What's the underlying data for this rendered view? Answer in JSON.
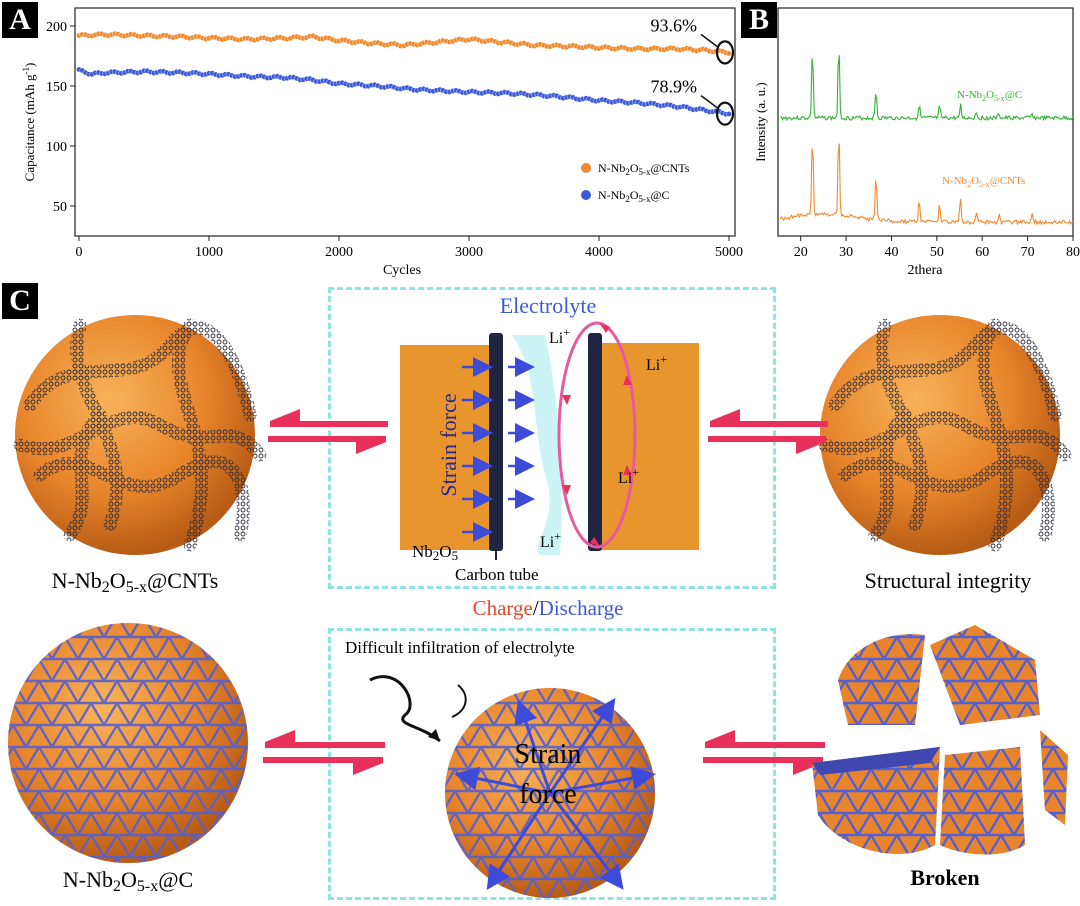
{
  "panels": {
    "a": "A",
    "b": "B",
    "c": "C"
  },
  "chart_data": [
    {
      "type": "scatter",
      "xlabel": "Cycles",
      "ylabel": "Capacitance (mAh g",
      "ylabel_sup": "-1",
      "ylabel_close": ")",
      "xlim": [
        0,
        5000
      ],
      "ylim": [
        25,
        215
      ],
      "xticks": [
        "0",
        "1000",
        "2000",
        "3000",
        "4000",
        "5000"
      ],
      "yticks": [
        "50",
        "100",
        "150",
        "200"
      ],
      "legend_position": "right",
      "series": [
        {
          "name": "N-Nb2O5-x@CNTs",
          "color": "#f08a2e",
          "annotation": "93.6%",
          "x": [
            0,
            200,
            500,
            800,
            1000,
            1300,
            1600,
            1800,
            2000,
            2200,
            2500,
            2800,
            3000,
            3200,
            3500,
            3800,
            4000,
            4300,
            4600,
            4800,
            5000
          ],
          "y": [
            192,
            193,
            192,
            191,
            190,
            189,
            190,
            191,
            188,
            186,
            184,
            187,
            189,
            187,
            184,
            183,
            182,
            181,
            181,
            180,
            178
          ]
        },
        {
          "name": "N-Nb2O5-x@C",
          "color": "#3d5bd8",
          "annotation": "78.9%",
          "x": [
            0,
            100,
            200,
            500,
            800,
            1000,
            1300,
            1600,
            1800,
            2000,
            2300,
            2600,
            2800,
            3000,
            3300,
            3600,
            3800,
            4000,
            4300,
            4600,
            4800,
            5000
          ],
          "y": [
            163,
            160,
            161,
            162,
            161,
            160,
            158,
            157,
            155,
            152,
            150,
            147,
            146,
            145,
            144,
            142,
            140,
            138,
            136,
            133,
            130,
            127
          ]
        }
      ]
    },
    {
      "type": "line",
      "xlabel": "2thera",
      "ylabel": "Intensity (a. u.)",
      "xlim": [
        15,
        80
      ],
      "xticks": [
        "20",
        "30",
        "40",
        "50",
        "60",
        "70",
        "80"
      ],
      "peaks": [
        22.6,
        28.4,
        36.6,
        46.1,
        50.6,
        55.2,
        58.7,
        63.7,
        71.0
      ],
      "series": [
        {
          "name": "N-Nb2O5-x@C",
          "color": "#33b233",
          "peak_heights": [
            0.62,
            0.65,
            0.25,
            0.12,
            0.1,
            0.12,
            0.06,
            0.04,
            0.04
          ]
        },
        {
          "name": "N-Nb2O5-x@CNTs",
          "color": "#f08a2e",
          "peak_heights": [
            0.72,
            0.78,
            0.42,
            0.22,
            0.16,
            0.2,
            0.1,
            0.06,
            0.08
          ]
        }
      ]
    }
  ],
  "schematic": {
    "electrolyte": "Electrolyte",
    "li": "Li",
    "li_sup": "+",
    "strain_force": "Strain force",
    "nb2o5": "Nb2O5",
    "carbon_tube": "Carbon tube",
    "charge": "Charge",
    "slash": "/",
    "discharge": "Discharge",
    "cnts_caption": "N-Nb2O5-x@CNTs",
    "integrity_caption": "Structural integrity",
    "c_caption": "N-Nb2O5-x@C",
    "broken_caption": "Broken",
    "infiltration": "Difficult infiltration of electrolyte",
    "strain": "Strain",
    "force": "force"
  },
  "colors": {
    "orange": "#f08a2e",
    "blue": "#3d5bd8",
    "green": "#33b233",
    "red": "#e8305a",
    "cyan": "#8fe3e3"
  }
}
